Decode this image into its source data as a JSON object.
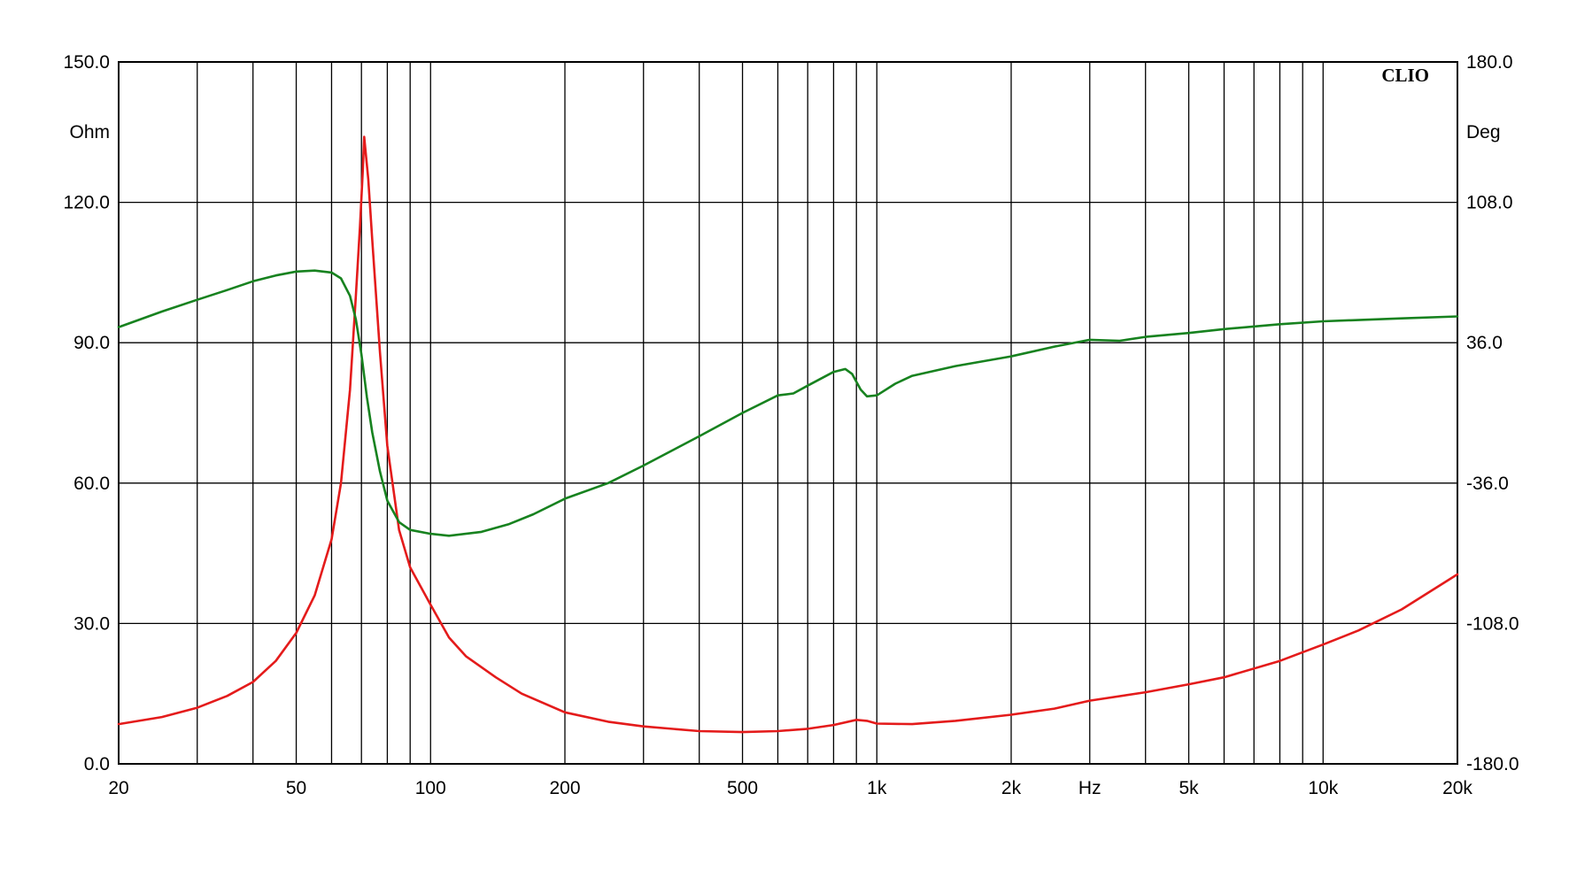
{
  "chart_data": {
    "type": "line",
    "brand": "CLIO",
    "xlabel": "Hz",
    "ylabel_left": "Ohm",
    "ylabel_right": "Deg",
    "x_scale": "log",
    "xlim": [
      20,
      20000
    ],
    "ylim_left": [
      0,
      150
    ],
    "ylim_right": [
      -180,
      180
    ],
    "grid": true,
    "x_ticks": [
      {
        "value": 20,
        "label": "20"
      },
      {
        "value": 50,
        "label": "50"
      },
      {
        "value": 100,
        "label": "100"
      },
      {
        "value": 200,
        "label": "200"
      },
      {
        "value": 500,
        "label": "500"
      },
      {
        "value": 1000,
        "label": "1k"
      },
      {
        "value": 2000,
        "label": "2k"
      },
      {
        "value": 5000,
        "label": "5k"
      },
      {
        "value": 10000,
        "label": "10k"
      },
      {
        "value": 20000,
        "label": "20k"
      }
    ],
    "x_unit_position": 3000,
    "y_ticks_left": [
      {
        "value": 0,
        "label": "0.0"
      },
      {
        "value": 30,
        "label": "30.0"
      },
      {
        "value": 60,
        "label": "60.0"
      },
      {
        "value": 90,
        "label": "90.0"
      },
      {
        "value": 120,
        "label": "120.0"
      },
      {
        "value": 150,
        "label": "150.0"
      }
    ],
    "y_ticks_right": [
      {
        "value": -180,
        "label": "-180.0"
      },
      {
        "value": -108,
        "label": "-108.0"
      },
      {
        "value": -36,
        "label": "-36.0"
      },
      {
        "value": 36,
        "label": "36.0"
      },
      {
        "value": 108,
        "label": "108.0"
      },
      {
        "value": 180,
        "label": "180.0"
      }
    ],
    "vgrid_freqs": [
      20,
      30,
      40,
      50,
      60,
      70,
      80,
      90,
      100,
      200,
      300,
      400,
      500,
      600,
      700,
      800,
      900,
      1000,
      2000,
      3000,
      4000,
      5000,
      6000,
      7000,
      8000,
      9000,
      10000,
      20000
    ],
    "series": [
      {
        "axis": "left",
        "color": "#e41b1b",
        "points": [
          [
            20,
            8.5
          ],
          [
            25,
            10
          ],
          [
            30,
            12
          ],
          [
            35,
            14.5
          ],
          [
            40,
            17.5
          ],
          [
            45,
            22
          ],
          [
            50,
            28
          ],
          [
            55,
            36
          ],
          [
            60,
            48
          ],
          [
            63,
            60
          ],
          [
            66,
            80
          ],
          [
            68,
            100
          ],
          [
            69.5,
            115
          ],
          [
            70.5,
            127
          ],
          [
            71,
            134
          ],
          [
            72.5,
            125
          ],
          [
            74,
            112
          ],
          [
            77,
            88
          ],
          [
            80,
            68
          ],
          [
            85,
            50
          ],
          [
            90,
            42
          ],
          [
            100,
            34
          ],
          [
            110,
            27
          ],
          [
            120,
            23
          ],
          [
            140,
            18.5
          ],
          [
            160,
            15
          ],
          [
            200,
            11
          ],
          [
            250,
            9
          ],
          [
            300,
            8
          ],
          [
            400,
            7
          ],
          [
            500,
            6.8
          ],
          [
            600,
            7
          ],
          [
            700,
            7.5
          ],
          [
            800,
            8.3
          ],
          [
            900,
            9.4
          ],
          [
            950,
            9.2
          ],
          [
            1000,
            8.6
          ],
          [
            1200,
            8.5
          ],
          [
            1500,
            9.2
          ],
          [
            2000,
            10.5
          ],
          [
            2500,
            11.8
          ],
          [
            3000,
            13.5
          ],
          [
            4000,
            15.3
          ],
          [
            5000,
            17
          ],
          [
            6000,
            18.5
          ],
          [
            8000,
            22
          ],
          [
            10000,
            25.5
          ],
          [
            12000,
            28.5
          ],
          [
            15000,
            33
          ],
          [
            20000,
            40.5
          ]
        ]
      },
      {
        "axis": "right",
        "color": "#17821f",
        "points": [
          [
            20,
            44
          ],
          [
            25,
            52
          ],
          [
            30,
            58
          ],
          [
            35,
            63
          ],
          [
            40,
            67.5
          ],
          [
            45,
            70.5
          ],
          [
            50,
            72.5
          ],
          [
            55,
            73
          ],
          [
            60,
            72
          ],
          [
            63,
            69
          ],
          [
            66,
            60
          ],
          [
            68,
            48
          ],
          [
            70,
            30
          ],
          [
            72,
            8
          ],
          [
            74,
            -10
          ],
          [
            77,
            -30
          ],
          [
            80,
            -45
          ],
          [
            85,
            -56
          ],
          [
            90,
            -60
          ],
          [
            100,
            -62
          ],
          [
            110,
            -63
          ],
          [
            130,
            -61
          ],
          [
            150,
            -57
          ],
          [
            170,
            -52
          ],
          [
            200,
            -44
          ],
          [
            250,
            -36
          ],
          [
            300,
            -27
          ],
          [
            400,
            -12
          ],
          [
            500,
            0
          ],
          [
            600,
            9
          ],
          [
            650,
            10
          ],
          [
            700,
            14
          ],
          [
            800,
            21
          ],
          [
            850,
            22.5
          ],
          [
            880,
            20
          ],
          [
            920,
            12
          ],
          [
            950,
            8.5
          ],
          [
            1000,
            9
          ],
          [
            1100,
            15
          ],
          [
            1200,
            19
          ],
          [
            1500,
            24
          ],
          [
            2000,
            29
          ],
          [
            2500,
            34
          ],
          [
            3000,
            37.5
          ],
          [
            3500,
            37
          ],
          [
            4000,
            39
          ],
          [
            5000,
            41
          ],
          [
            6000,
            43
          ],
          [
            8000,
            45.5
          ],
          [
            10000,
            47
          ],
          [
            15000,
            48.5
          ],
          [
            20000,
            49.5
          ]
        ]
      }
    ]
  }
}
